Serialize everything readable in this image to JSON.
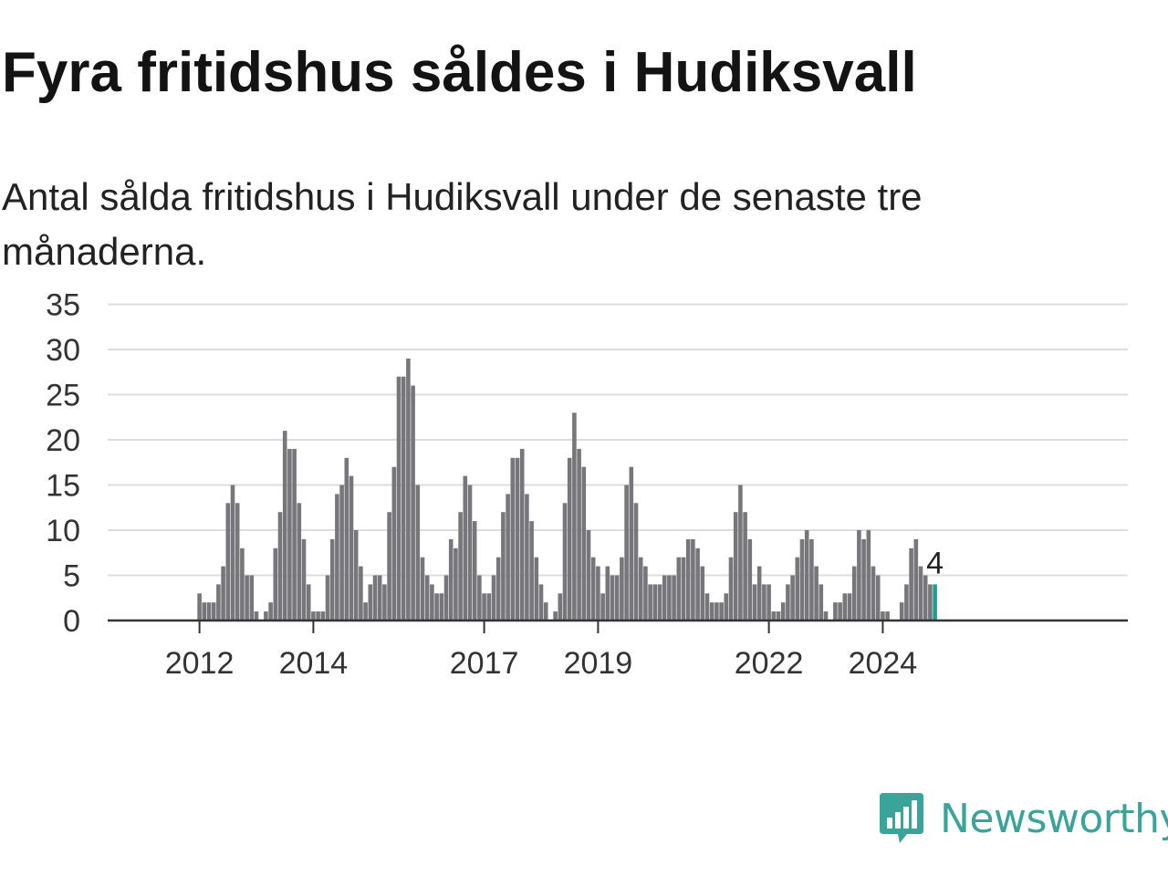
{
  "title": "Fyra fritidshus såldes i Hudiksvall",
  "subtitle": "Antal sålda fritidshus i Hudiksvall under de senaste tre månaderna.",
  "brand": {
    "name": "Newsworthy",
    "logo_icon": "bar-chart-speech-bubble-icon",
    "color": "#3aa39a"
  },
  "colors": {
    "bar": "#77777b",
    "highlight": "#1f9e90",
    "grid": "#dddddd",
    "axis": "#333333"
  },
  "chart_data": {
    "type": "bar",
    "ylim": [
      0,
      35
    ],
    "yticks": [
      0,
      5,
      10,
      15,
      20,
      25,
      30,
      35
    ],
    "xticks": [
      {
        "label": "2012",
        "index": 9
      },
      {
        "label": "2014",
        "index": 33
      },
      {
        "label": "2017",
        "index": 69
      },
      {
        "label": "2019",
        "index": 93
      },
      {
        "label": "2022",
        "index": 129
      },
      {
        "label": "2024",
        "index": 153
      }
    ],
    "grid": true,
    "last_value_label": "4",
    "values": [
      0,
      0,
      0,
      0,
      0,
      0,
      0,
      0,
      0,
      3,
      2,
      2,
      2,
      4,
      6,
      13,
      15,
      13,
      8,
      5,
      5,
      1,
      0,
      1,
      2,
      8,
      12,
      21,
      19,
      19,
      13,
      9,
      4,
      1,
      1,
      1,
      5,
      9,
      14,
      15,
      18,
      16,
      10,
      6,
      2,
      4,
      5,
      5,
      4,
      12,
      17,
      27,
      27,
      29,
      26,
      15,
      7,
      5,
      4,
      3,
      3,
      5,
      9,
      8,
      12,
      16,
      15,
      11,
      5,
      3,
      3,
      5,
      7,
      12,
      14,
      18,
      18,
      19,
      14,
      11,
      7,
      4,
      2,
      0,
      1,
      3,
      13,
      18,
      23,
      19,
      17,
      10,
      7,
      6,
      3,
      6,
      5,
      5,
      7,
      15,
      17,
      13,
      7,
      6,
      4,
      4,
      4,
      5,
      5,
      5,
      7,
      7,
      9,
      9,
      8,
      6,
      3,
      2,
      2,
      2,
      3,
      7,
      12,
      15,
      12,
      9,
      4,
      6,
      4,
      4,
      1,
      1,
      2,
      4,
      5,
      7,
      9,
      10,
      9,
      6,
      4,
      1,
      0,
      2,
      2,
      3,
      3,
      6,
      10,
      9,
      10,
      6,
      5,
      1,
      1,
      0,
      0,
      2,
      4,
      8,
      9,
      6,
      5,
      4,
      4
    ]
  }
}
